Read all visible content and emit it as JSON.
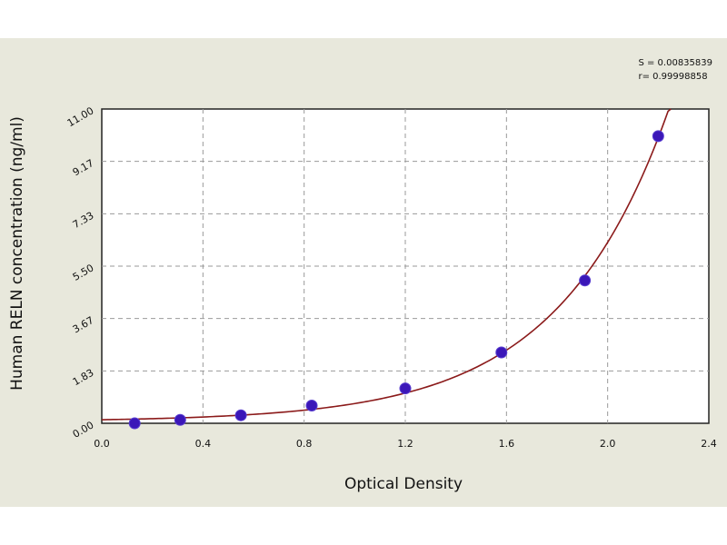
{
  "chart_data": {
    "type": "scatter",
    "title": "",
    "xlabel": "Optical Density",
    "ylabel": "Human  RELN concentration (ng/ml)",
    "xlim": [
      0.0,
      2.4
    ],
    "ylim": [
      0.0,
      11.0
    ],
    "x_ticks": [
      "0.0",
      "0.4",
      "0.8",
      "1.2",
      "1.6",
      "2.0",
      "2.4"
    ],
    "y_ticks": [
      "0.00",
      "1.83",
      "3.67",
      "5.50",
      "7.33",
      "9.17",
      "11.00"
    ],
    "grid": true,
    "points": [
      {
        "x": 0.13,
        "y": 0.0
      },
      {
        "x": 0.31,
        "y": 0.12
      },
      {
        "x": 0.55,
        "y": 0.28
      },
      {
        "x": 0.83,
        "y": 0.62
      },
      {
        "x": 1.2,
        "y": 1.22
      },
      {
        "x": 1.58,
        "y": 2.48
      },
      {
        "x": 1.91,
        "y": 5.0
      },
      {
        "x": 2.2,
        "y": 10.05
      }
    ],
    "fit_curve": {
      "type": "exponential",
      "x_range": [
        0.0,
        2.25
      ]
    },
    "annotations": [
      "S = 0.00835839",
      "r= 0.99998858"
    ],
    "colors": {
      "points": "#3b17b8",
      "curve": "#8b1a1a",
      "grid": "#9a9a9a",
      "background": "#e8e8dc",
      "plot": "#ffffff"
    }
  }
}
